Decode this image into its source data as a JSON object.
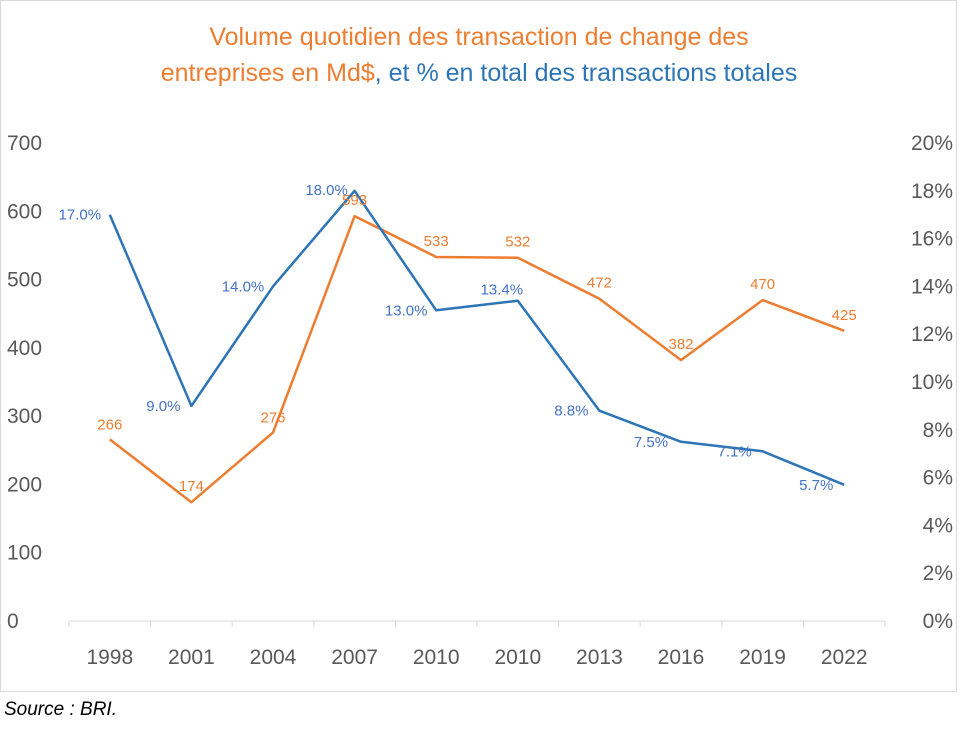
{
  "chart_data": {
    "type": "line",
    "title": {
      "line1": "Volume  quotidien des transaction de change des",
      "line2_part1": "entreprises en Md$",
      "line2_part2": ", et % en total des transactions totales"
    },
    "categories": [
      "1998",
      "2001",
      "2004",
      "2007",
      "2010",
      "2010",
      "2013",
      "2016",
      "2019",
      "2022"
    ],
    "left_axis": {
      "ticks": [
        "0",
        "100",
        "200",
        "300",
        "400",
        "500",
        "600",
        "700"
      ],
      "min": 0,
      "max": 700
    },
    "right_axis": {
      "ticks": [
        "0%",
        "2%",
        "4%",
        "6%",
        "8%",
        "10%",
        "12%",
        "14%",
        "16%",
        "18%",
        "20%"
      ],
      "min": 0,
      "max": 20
    },
    "series": [
      {
        "axis": "left",
        "color": "#ed7d31",
        "values": [
          266,
          174,
          276,
          593,
          533,
          532,
          472,
          382,
          470,
          425
        ],
        "labels": [
          "266",
          "174",
          "276",
          "593",
          "533",
          "532",
          "472",
          "382",
          "470",
          "425"
        ]
      },
      {
        "axis": "right",
        "color": "#2e75b6",
        "values": [
          17.0,
          9.0,
          14.0,
          18.0,
          13.0,
          13.4,
          8.8,
          7.5,
          7.1,
          5.7
        ],
        "labels": [
          "17.0%",
          "9.0%",
          "14.0%",
          "18.0%",
          "13.0%",
          "13.4%",
          "8.8%",
          "7.5%",
          "7.1%",
          "5.7%"
        ]
      }
    ],
    "grid": false,
    "legend": "none"
  },
  "colors": {
    "orange": "#ed7d31",
    "blue": "#2e75b6",
    "label_blue": "#4472c4",
    "axis": "#595959"
  },
  "source": "Source : BRI."
}
